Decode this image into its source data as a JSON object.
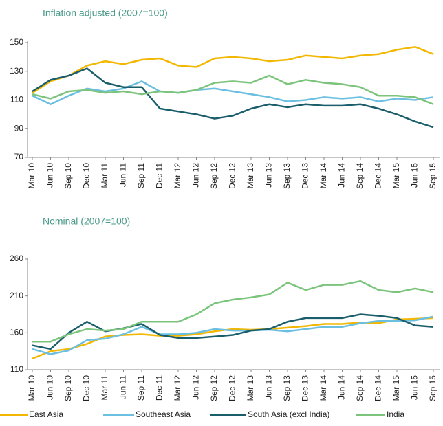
{
  "chart_data": [
    {
      "type": "line",
      "title": "Inflation adjusted (2007=100)",
      "categories": [
        "Mar 10",
        "Jun 10",
        "Sep 10",
        "Dec 10",
        "Mar 11",
        "Jun 11",
        "Sep 11",
        "Dec 11",
        "Mar 12",
        "Jun 12",
        "Sep 12",
        "Dec 12",
        "Mar 13",
        "Jun 13",
        "Sep 13",
        "Dec 13",
        "Mar 14",
        "Jun 14",
        "Sep 14",
        "Dec 14",
        "Mar 15",
        "Jun 15",
        "Sep 15"
      ],
      "ylim": [
        70,
        150
      ],
      "yticks": [
        70,
        90,
        110,
        130,
        150
      ],
      "series": [
        {
          "color": "#f2b700",
          "values": [
            115,
            123,
            127,
            134,
            137,
            135,
            138,
            139,
            134,
            133,
            139,
            140,
            139,
            137,
            138,
            141,
            140,
            139,
            141,
            142,
            145,
            147,
            142
          ]
        },
        {
          "color": "#6bbfe0",
          "values": [
            113,
            107,
            113,
            118,
            116,
            118,
            123,
            116,
            115,
            117,
            118,
            116,
            114,
            112,
            109,
            110,
            112,
            111,
            112,
            109,
            111,
            110,
            112
          ]
        },
        {
          "color": "#1b5e6b",
          "values": [
            116,
            124,
            127,
            132,
            122,
            119,
            119,
            104,
            102,
            100,
            97,
            99,
            104,
            107,
            105,
            107,
            106,
            106,
            107,
            104,
            100,
            95,
            91
          ]
        },
        {
          "color": "#7cc47c",
          "values": [
            114,
            111,
            116,
            117,
            115,
            116,
            114,
            116,
            115,
            117,
            122,
            123,
            122,
            127,
            121,
            124,
            122,
            121,
            119,
            113,
            113,
            112,
            107
          ]
        }
      ]
    },
    {
      "type": "line",
      "title": "Nominal (2007=100)",
      "categories": [
        "Mar 10",
        "Jun 10",
        "Sep 10",
        "Dec 10",
        "Mar 11",
        "Jun 11",
        "Sep 11",
        "Dec 11",
        "Mar 12",
        "Jun 12",
        "Sep 12",
        "Dec 12",
        "Mar 13",
        "Jun 13",
        "Sep 13",
        "Dec 13",
        "Mar 14",
        "Jun 14",
        "Sep 14",
        "Dec 14",
        "Mar 15",
        "Jun 15",
        "Sep 15"
      ],
      "ylim": [
        110,
        260
      ],
      "yticks": [
        110,
        160,
        210,
        260
      ],
      "legend": "bottom",
      "series": [
        {
          "name": "East Asia",
          "color": "#f2b700",
          "values": [
            125,
            135,
            138,
            145,
            155,
            157,
            158,
            156,
            156,
            158,
            162,
            165,
            164,
            165,
            167,
            169,
            172,
            172,
            174,
            173,
            178,
            179,
            180
          ]
        },
        {
          "name": "Southeast Asia",
          "color": "#6bbfe0",
          "values": [
            138,
            131,
            136,
            150,
            152,
            158,
            168,
            158,
            158,
            160,
            165,
            163,
            163,
            164,
            162,
            165,
            168,
            168,
            173,
            176,
            176,
            177,
            182
          ]
        },
        {
          "name": "South Asia (excl India)",
          "color": "#1b5e6b",
          "values": [
            143,
            138,
            160,
            175,
            162,
            166,
            172,
            157,
            153,
            153,
            155,
            157,
            163,
            165,
            175,
            180,
            180,
            180,
            185,
            183,
            180,
            170,
            168
          ]
        },
        {
          "name": "India",
          "color": "#7cc47c",
          "values": [
            148,
            148,
            158,
            165,
            163,
            165,
            175,
            175,
            175,
            185,
            200,
            205,
            208,
            212,
            228,
            218,
            225,
            225,
            230,
            218,
            215,
            220,
            215
          ]
        }
      ]
    }
  ]
}
